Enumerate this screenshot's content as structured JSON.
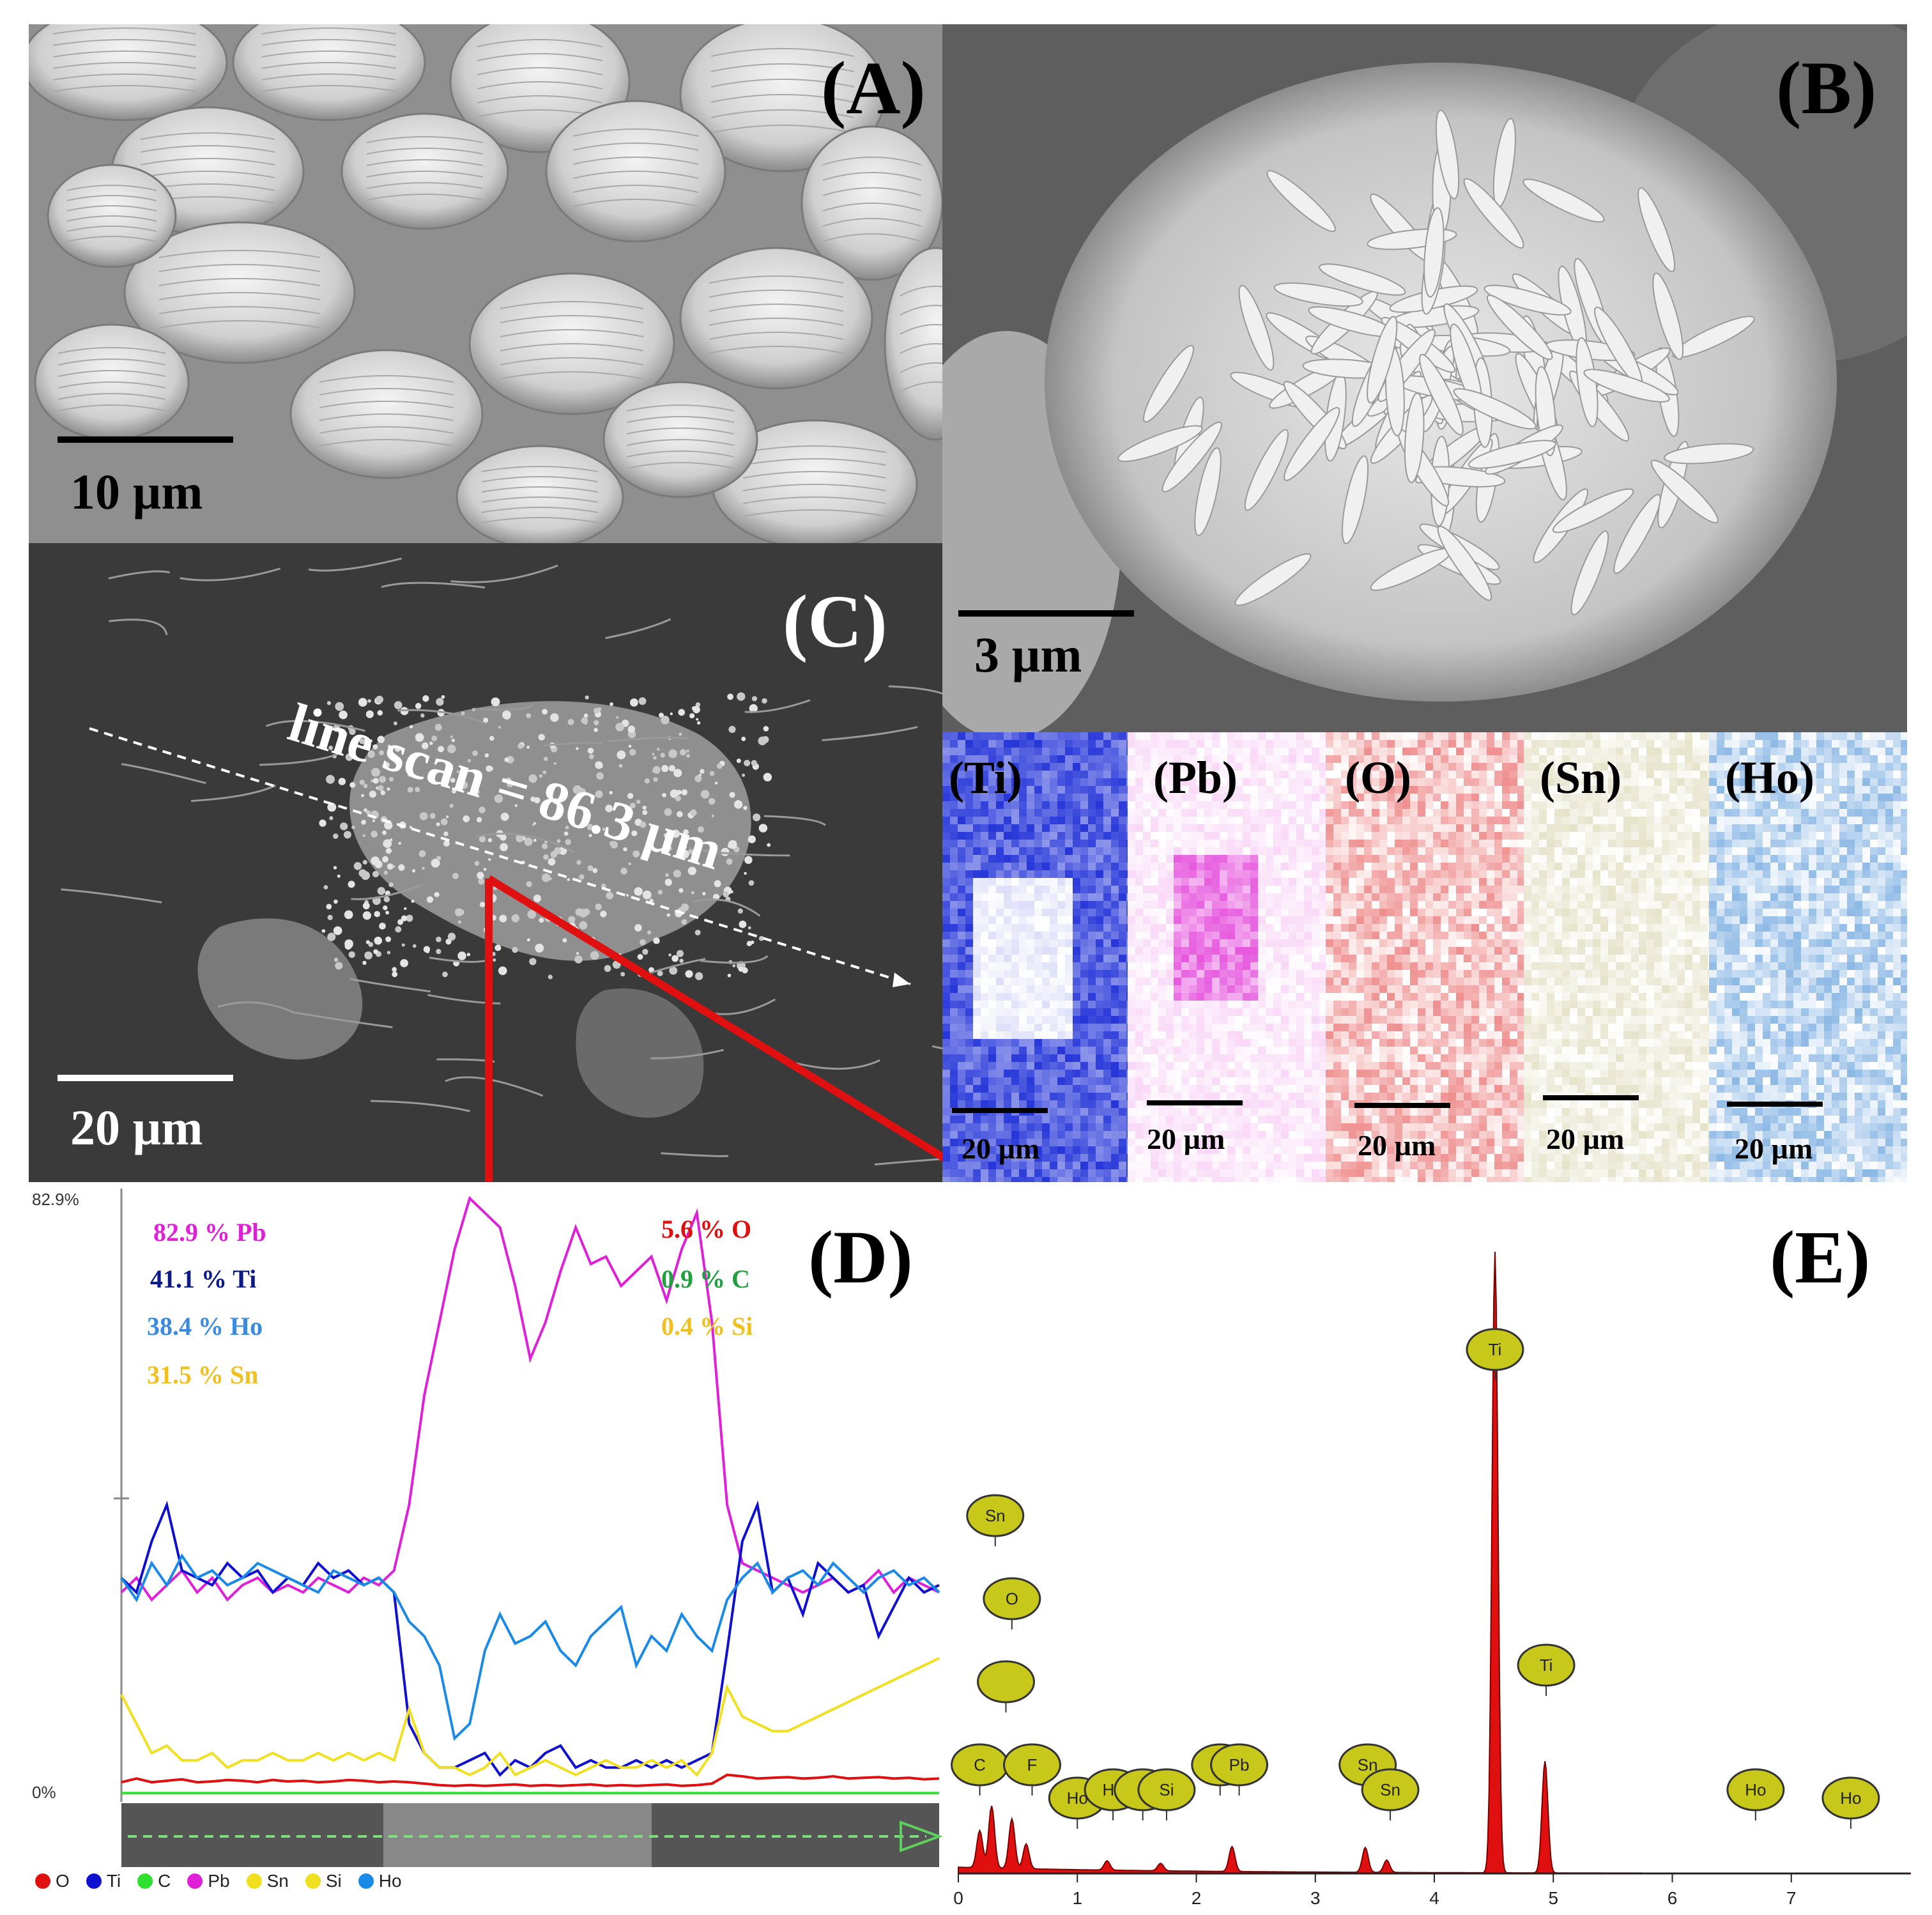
{
  "panels": {
    "A": {
      "label": "(A)",
      "scale": "10 µm"
    },
    "B": {
      "label": "(B)",
      "scale": "3 µm"
    },
    "C": {
      "label": "(C)",
      "scale": "20 µm",
      "line_scan": "line scan = 86.3 µm"
    },
    "D": {
      "label": "(D)"
    },
    "E": {
      "label": "(E)"
    }
  },
  "maps": [
    {
      "label": "(Ti)",
      "scale": "20 µm",
      "color": "#1a2bd6"
    },
    {
      "label": "(Pb)",
      "scale": "20 µm",
      "color": "#e23ad8"
    },
    {
      "label": "(O)",
      "scale": "20 µm",
      "color": "#e23434"
    },
    {
      "label": "(Sn)",
      "scale": "20 µm",
      "color": "#b8b06a"
    },
    {
      "label": "(Ho)",
      "scale": "20 µm",
      "color": "#2f7fd0"
    }
  ],
  "linescan": {
    "ymax_label": "82.9%",
    "ymin_label": "0%",
    "percent_left": [
      {
        "text": "82.9 % Pb",
        "color": "#e020d8"
      },
      {
        "text": "41.1 % Ti",
        "color": "#0a1a8a"
      },
      {
        "text": "38.4 % Ho",
        "color": "#3a8ae0"
      },
      {
        "text": "31.5 % Sn",
        "color": "#f0c020"
      }
    ],
    "percent_right": [
      {
        "text": "5.6 % O",
        "color": "#e01010"
      },
      {
        "text": "0.9 % C",
        "color": "#20a040"
      },
      {
        "text": "0.4 % Si",
        "color": "#f0c020"
      }
    ],
    "legend": [
      {
        "name": "O",
        "color": "#e01010"
      },
      {
        "name": "Ti",
        "color": "#1010d0"
      },
      {
        "name": "C",
        "color": "#30e030"
      },
      {
        "name": "Pb",
        "color": "#e020d8"
      },
      {
        "name": "Sn",
        "color": "#f0e020"
      },
      {
        "name": "Si",
        "color": "#f0e020"
      },
      {
        "name": "Ho",
        "color": "#1a8ae8"
      }
    ]
  },
  "chart_data": [
    {
      "type": "line",
      "ylim": [
        0,
        82.9
      ],
      "series": [
        {
          "name": "Pb",
          "values": [
            28,
            30,
            27,
            29,
            31,
            28,
            30,
            27,
            29,
            30,
            28,
            29,
            28,
            30,
            29,
            28,
            30,
            29,
            31,
            40,
            55,
            65,
            75,
            82,
            80,
            78,
            70,
            60,
            65,
            72,
            78,
            73,
            74,
            70,
            72,
            74,
            68,
            75,
            80,
            65,
            40,
            32,
            31,
            30,
            29,
            28,
            29,
            30,
            28,
            29,
            31,
            28,
            30,
            29,
            28
          ]
        },
        {
          "name": "Ti",
          "values": [
            30,
            28,
            35,
            40,
            31,
            30,
            29,
            32,
            30,
            31,
            28,
            30,
            29,
            32,
            30,
            31,
            29,
            30,
            28,
            10,
            6,
            4,
            4,
            5,
            6,
            3,
            5,
            4,
            6,
            7,
            4,
            5,
            4,
            4,
            5,
            4,
            5,
            4,
            5,
            6,
            20,
            35,
            40,
            28,
            30,
            25,
            32,
            30,
            28,
            29,
            22,
            26,
            30,
            28,
            29
          ]
        },
        {
          "name": "Ho",
          "values": [
            30,
            27,
            32,
            29,
            33,
            30,
            31,
            29,
            30,
            32,
            31,
            30,
            29,
            28,
            31,
            30,
            29,
            30,
            28,
            24,
            22,
            18,
            8,
            10,
            20,
            25,
            21,
            22,
            24,
            20,
            18,
            22,
            24,
            26,
            18,
            22,
            20,
            25,
            22,
            20,
            27,
            30,
            32,
            28,
            30,
            31,
            29,
            32,
            30,
            28,
            30,
            31,
            29,
            30,
            28
          ]
        },
        {
          "name": "Sn",
          "values": [
            14,
            10,
            6,
            7,
            5,
            5,
            6,
            4,
            5,
            5,
            6,
            5,
            5,
            6,
            5,
            6,
            5,
            6,
            5,
            12,
            6,
            4,
            4,
            3,
            4,
            6,
            3,
            4,
            5,
            4,
            3,
            4,
            5,
            4,
            4,
            5,
            4,
            5,
            3,
            6,
            15,
            11,
            10,
            9,
            9,
            10,
            11,
            12,
            13,
            14,
            15,
            16,
            17,
            18,
            19
          ]
        },
        {
          "name": "O",
          "values": [
            2,
            2.5,
            2,
            2.2,
            2.4,
            2,
            2.1,
            2.3,
            2.2,
            2,
            2.3,
            2.1,
            2.2,
            2,
            2.1,
            2.3,
            2.2,
            2,
            2.1,
            2,
            1.8,
            1.6,
            1.5,
            1.6,
            1.5,
            1.6,
            1.7,
            1.5,
            1.6,
            1.5,
            1.6,
            1.7,
            1.5,
            1.6,
            1.5,
            1.6,
            1.7,
            1.5,
            1.6,
            1.8,
            3,
            2.8,
            2.5,
            2.6,
            2.7,
            2.5,
            2.6,
            2.8,
            2.5,
            2.6,
            2.7,
            2.5,
            2.6,
            2.4,
            2.5
          ]
        },
        {
          "name": "C",
          "values": [
            0.5,
            0.5,
            0.5,
            0.5,
            0.5,
            0.5,
            0.5,
            0.5,
            0.5,
            0.5,
            0.5,
            0.5,
            0.5,
            0.5,
            0.5,
            0.5,
            0.5,
            0.5,
            0.5,
            0.5,
            0.5,
            0.5,
            0.5,
            0.5,
            0.5,
            0.5,
            0.5,
            0.5,
            0.5,
            0.5,
            0.5,
            0.5,
            0.5,
            0.5,
            0.5,
            0.5,
            0.5,
            0.5,
            0.5,
            0.5,
            0.5,
            0.5,
            0.5,
            0.5,
            0.5,
            0.5,
            0.5,
            0.5,
            0.5,
            0.5,
            0.5,
            0.5,
            0.5,
            0.5,
            0.5
          ]
        }
      ]
    },
    {
      "type": "area",
      "x_ticks": [
        "0",
        "1",
        "2",
        "3",
        "4",
        "5",
        "6",
        "7"
      ],
      "xlim": [
        0,
        8
      ],
      "peaks": [
        {
          "x": 0.18,
          "h": 0.06
        },
        {
          "x": 0.28,
          "h": 0.1
        },
        {
          "x": 0.45,
          "h": 0.08
        },
        {
          "x": 0.57,
          "h": 0.04
        },
        {
          "x": 1.25,
          "h": 0.015
        },
        {
          "x": 1.7,
          "h": 0.012
        },
        {
          "x": 2.3,
          "h": 0.04
        },
        {
          "x": 3.42,
          "h": 0.04
        },
        {
          "x": 3.6,
          "h": 0.02
        },
        {
          "x": 4.51,
          "h": 1.0
        },
        {
          "x": 4.93,
          "h": 0.18
        }
      ],
      "element_markers": [
        {
          "name": "Sn",
          "x": 0.31,
          "level": 4
        },
        {
          "name": "O",
          "x": 0.45,
          "level": 3
        },
        {
          "name": "",
          "x": 0.4,
          "level": 2
        },
        {
          "name": "C",
          "x": 0.18,
          "level": 1
        },
        {
          "name": "F",
          "x": 0.62,
          "level": 1
        },
        {
          "name": "Ho",
          "x": 1.0,
          "level": 0.6
        },
        {
          "name": "Ho",
          "x": 1.3,
          "level": 0.7
        },
        {
          "name": "",
          "x": 1.55,
          "level": 0.7
        },
        {
          "name": "Si",
          "x": 1.75,
          "level": 0.7
        },
        {
          "name": "",
          "x": 2.2,
          "level": 1
        },
        {
          "name": "Pb",
          "x": 2.36,
          "level": 1
        },
        {
          "name": "Sn",
          "x": 3.44,
          "level": 1
        },
        {
          "name": "Sn",
          "x": 3.63,
          "level": 0.7
        },
        {
          "name": "Ti",
          "x": 4.51,
          "level": 6
        },
        {
          "name": "Ti",
          "x": 4.94,
          "level": 2.2
        },
        {
          "name": "Ho",
          "x": 6.7,
          "level": 0.7
        },
        {
          "name": "Ho",
          "x": 7.5,
          "level": 0.6
        }
      ]
    }
  ]
}
